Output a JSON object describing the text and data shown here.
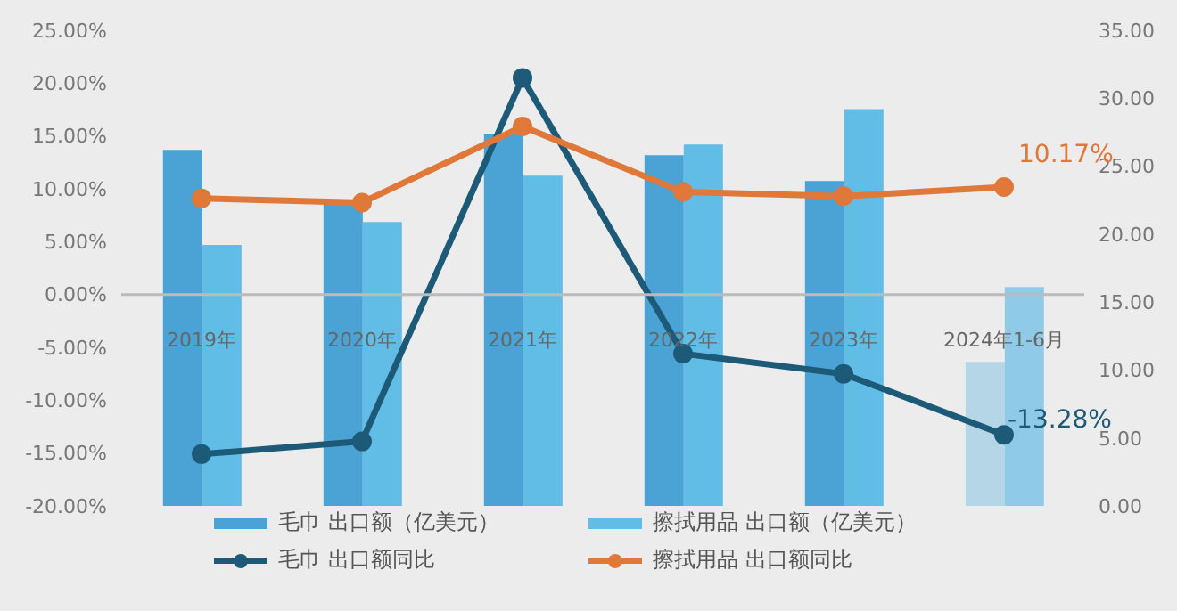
{
  "chart_data": {
    "type": "bar",
    "categories": [
      "2019年",
      "2020年",
      "2021年",
      "2022年",
      "2023年",
      "2024年1-6月"
    ],
    "series": [
      {
        "name": "毛巾 出口额（亿美元）",
        "axis": "y2",
        "color": "#4aa3d4",
        "colors": [
          "#4aa3d4",
          "#4aa3d4",
          "#4aa3d4",
          "#4aa3d4",
          "#4aa3d4",
          "#b4d6e6"
        ],
        "values": [
          26.2,
          22.3,
          27.4,
          25.8,
          23.9,
          10.6
        ]
      },
      {
        "name": "擦拭用品 出口额（亿美元）",
        "axis": "y2",
        "color": "#62bde6",
        "colors": [
          "#62bde6",
          "#62bde6",
          "#62bde6",
          "#62bde6",
          "#62bde6",
          "#8fcbe8"
        ],
        "values": [
          19.2,
          20.9,
          24.3,
          26.6,
          29.2,
          16.1
        ]
      },
      {
        "name": "毛巾 出口额同比",
        "type": "line",
        "color": "#1d5a78",
        "values": [
          -15.1,
          -13.9,
          20.5,
          -5.6,
          -7.5,
          -13.28
        ],
        "value_labels": [
          null,
          null,
          null,
          null,
          null,
          "-13.28%"
        ]
      },
      {
        "name": "擦拭用品 出口额同比",
        "type": "line",
        "color": "#e0783a",
        "values": [
          9.1,
          8.7,
          15.9,
          9.7,
          9.3,
          10.17
        ],
        "value_labels": [
          null,
          null,
          null,
          null,
          null,
          "10.17%"
        ]
      }
    ],
    "ylim": [
      -20,
      25
    ],
    "yticks": [
      {
        "value": -20,
        "label": "-20.00%"
      },
      {
        "value": -15,
        "label": "-15.00%"
      },
      {
        "value": -10,
        "label": "-10.00%"
      },
      {
        "value": -5,
        "label": "-5.00%"
      },
      {
        "value": 0,
        "label": "0.00%"
      },
      {
        "value": 5,
        "label": "5.00%"
      },
      {
        "value": 10,
        "label": "10.00%"
      },
      {
        "value": 15,
        "label": "15.00%"
      },
      {
        "value": 20,
        "label": "20.00%"
      },
      {
        "value": 25,
        "label": "25.00%"
      }
    ],
    "y2lim": [
      0,
      35
    ],
    "y2ticks": [
      {
        "value": 0,
        "label": "0.00"
      },
      {
        "value": 5,
        "label": "5.00"
      },
      {
        "value": 10,
        "label": "10.00"
      },
      {
        "value": 15,
        "label": "15.00"
      },
      {
        "value": 20,
        "label": "20.00"
      },
      {
        "value": 25,
        "label": "25.00"
      },
      {
        "value": 30,
        "label": "30.00"
      },
      {
        "value": 35,
        "label": "35.00"
      }
    ],
    "marker": "circle",
    "line_style": "solid",
    "legend": "bottom"
  }
}
